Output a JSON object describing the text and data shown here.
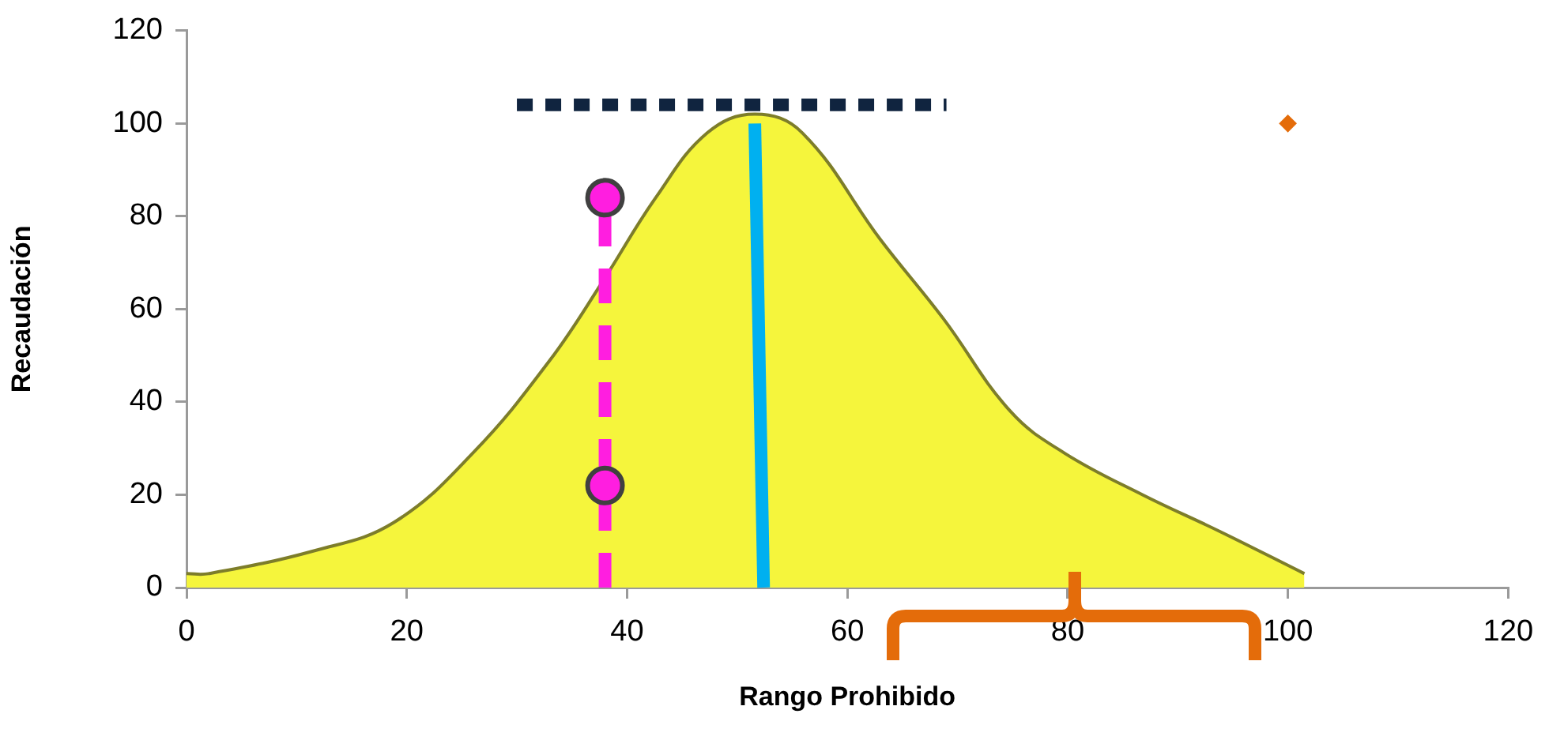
{
  "chart_data": {
    "type": "area",
    "xlabel": "Rango Prohibido",
    "ylabel": "Recaudación",
    "xlim": [
      0,
      120
    ],
    "xticks": [
      0,
      20,
      40,
      60,
      80,
      100,
      120
    ],
    "ylim": [
      0,
      120
    ],
    "yticks": [
      0,
      20,
      40,
      60,
      80,
      100,
      120
    ],
    "series": [
      {
        "type": "area",
        "color": "#f5f53c",
        "x": [
          0,
          2,
          11.7,
          18.8,
          26,
          33,
          37.8,
          42.6,
          47.3,
          51.6,
          55.9,
          63,
          68.7,
          74.8,
          79.7,
          86.8,
          93.9,
          101.5
        ],
        "values": [
          3,
          3,
          8,
          14,
          29,
          49,
          66,
          84,
          98,
          102,
          98,
          75,
          58,
          38,
          29,
          20,
          12,
          3
        ]
      },
      {
        "type": "line",
        "color": "#10243f",
        "line_style": "dotted",
        "x": [
          30,
          69
        ],
        "values": [
          104,
          104
        ]
      },
      {
        "type": "line",
        "color": "#00b0f0",
        "line_style": "solid",
        "x": [
          52.4,
          51.6
        ],
        "values": [
          0,
          100
        ]
      },
      {
        "type": "line",
        "color": "#ff1ee0",
        "line_style": "dashed",
        "x": [
          38,
          38
        ],
        "values": [
          0,
          84
        ]
      },
      {
        "type": "scatter",
        "color": "#ff1ee0",
        "marker": "circle",
        "x": [
          38,
          38
        ],
        "values": [
          84,
          22
        ]
      },
      {
        "type": "scatter",
        "color": "#e46c0a",
        "marker": "diamond",
        "x": [
          100
        ],
        "values": [
          100
        ]
      }
    ]
  }
}
